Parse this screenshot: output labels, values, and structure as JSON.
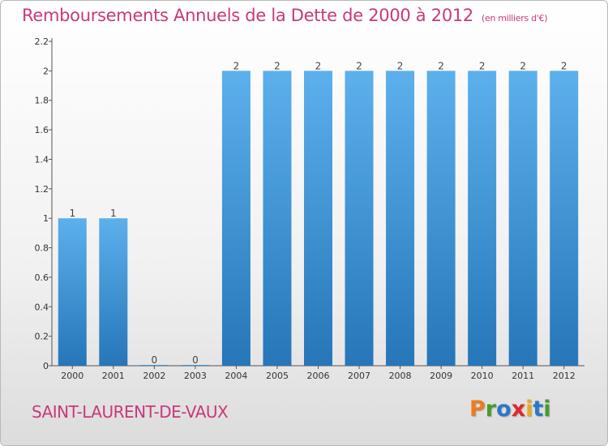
{
  "header": {
    "title": "Remboursements Annuels de la Dette de 2000 à 2012",
    "unit": "(en milliers d'€)"
  },
  "footer": {
    "commune": "SAINT-LAURENT-DE-VAUX",
    "logo_letters": [
      "P",
      "r",
      "o",
      "x",
      "i",
      "t",
      "i"
    ],
    "logo_colors": [
      "#f07a20",
      "#4a9a2a",
      "#2a77c8",
      "#e0262f",
      "#f0a818",
      "#2a77c8",
      "#4a9a2a"
    ]
  },
  "chart_data": {
    "type": "bar",
    "categories": [
      "2000",
      "2001",
      "2002",
      "2003",
      "2004",
      "2005",
      "2006",
      "2007",
      "2008",
      "2009",
      "2010",
      "2011",
      "2012"
    ],
    "values": [
      1,
      1,
      0,
      0,
      2,
      2,
      2,
      2,
      2,
      2,
      2,
      2,
      2
    ],
    "data_labels": [
      "1",
      "1",
      "0",
      "0",
      "2",
      "2",
      "2",
      "2",
      "2",
      "2",
      "2",
      "2",
      "2"
    ],
    "title": "Remboursements Annuels de la Dette de 2000 à 2012",
    "xlabel": "",
    "ylabel": "",
    "ylim": [
      0,
      2.2
    ],
    "yticks": [
      0,
      0.2,
      0.4,
      0.6,
      0.8,
      1,
      1.2,
      1.4,
      1.6,
      1.8,
      2,
      2.2
    ],
    "ytick_labels": [
      "0",
      "0.2",
      "0.4",
      "0.6",
      "0.8",
      "1",
      "1.2",
      "1.4",
      "1.6",
      "1.8",
      "2",
      "2.2"
    ],
    "grid": false,
    "legend": "none",
    "bar_color": "#3f96d8"
  }
}
